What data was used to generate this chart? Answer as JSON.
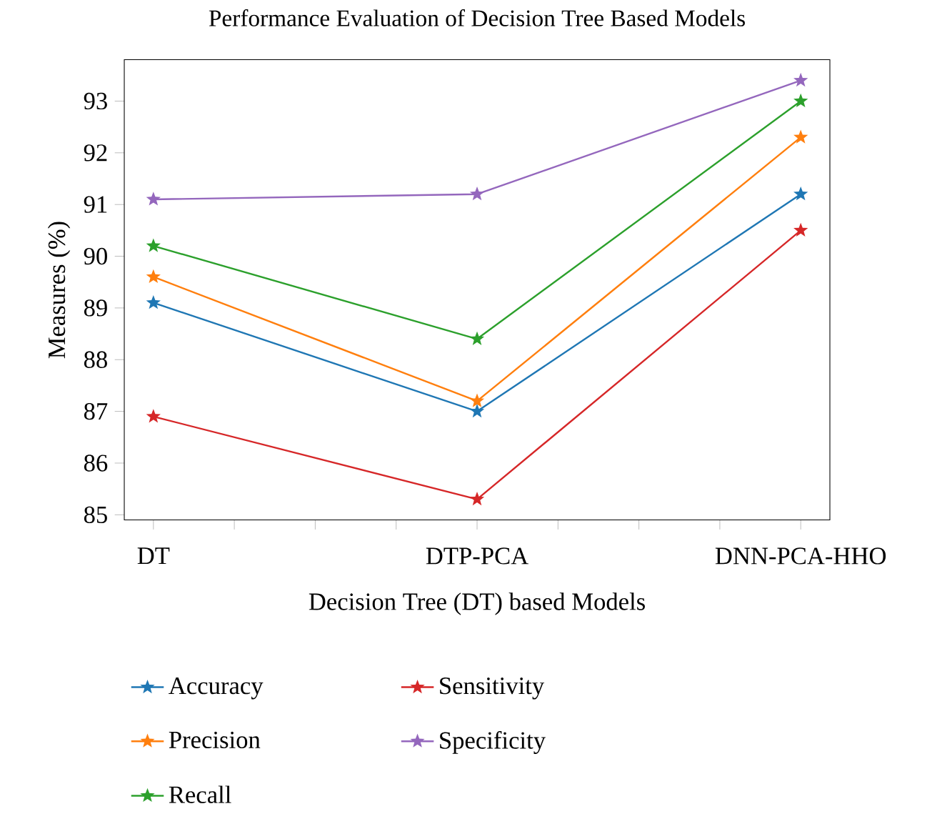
{
  "chart_data": {
    "type": "line",
    "title": "Performance Evaluation of Decision Tree Based Models",
    "xlabel": "Decision Tree (DT) based Models",
    "ylabel": "Measures (%)",
    "categories": [
      "DT",
      "DTP-PCA",
      "DNN-PCA-HHO"
    ],
    "ylim": [
      84.9,
      93.8
    ],
    "yticks": [
      85,
      86,
      87,
      88,
      89,
      90,
      91,
      92,
      93
    ],
    "series": [
      {
        "name": "Accuracy",
        "color": "#1f77b4",
        "values": [
          89.1,
          87.0,
          91.2
        ]
      },
      {
        "name": "Precision",
        "color": "#ff7f0e",
        "values": [
          89.6,
          87.2,
          92.3
        ]
      },
      {
        "name": "Recall",
        "color": "#2ca02c",
        "values": [
          90.2,
          88.4,
          93.0
        ]
      },
      {
        "name": "Sensitivity",
        "color": "#d62728",
        "values": [
          86.9,
          85.3,
          90.5
        ]
      },
      {
        "name": "Specificity",
        "color": "#9467bd",
        "values": [
          91.1,
          91.2,
          93.4
        ]
      }
    ],
    "marker": "star",
    "line_style": "solid",
    "grid": false,
    "legend": "bottom"
  }
}
